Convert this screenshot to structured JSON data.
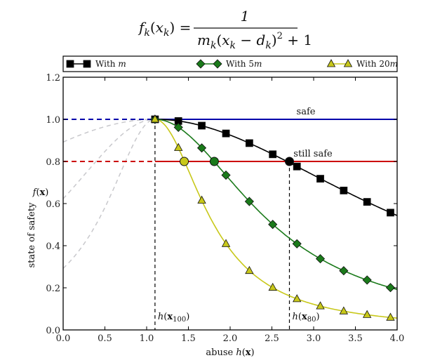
{
  "formula": {
    "lhs": "f_k(x_k) =",
    "numerator": "1",
    "denominator": "m_k(x_k − d_k)² + 1"
  },
  "chart_data": {
    "type": "line",
    "title": "",
    "xlabel": "abuse h(x)",
    "ylabel": "state of safety",
    "ylabel_symbol": "f(x)",
    "xlim": [
      0.0,
      4.0
    ],
    "ylim": [
      0.0,
      1.2
    ],
    "xticks": [
      "0.0",
      "0.5",
      "1.0",
      "1.5",
      "2.0",
      "2.5",
      "3.0",
      "3.5",
      "4.0"
    ],
    "yticks": [
      "0.0",
      "0.2",
      "0.4",
      "0.6",
      "0.8",
      "1.0",
      "1.2"
    ],
    "grid": false,
    "legend_position": "top, outside above plot",
    "function": "f(x) = 1 / (m (x - d)^2 + 1)",
    "d": 1.1,
    "series": [
      {
        "name": "With m",
        "legend_label": "With ",
        "legend_var": "m",
        "m": 0.1,
        "color": "#000000",
        "marker": "square",
        "x": [
          1.1,
          1.38,
          1.66,
          1.95,
          2.23,
          2.51,
          2.8,
          3.08,
          3.36,
          3.64,
          3.92
        ],
        "values": [
          1.0,
          0.992,
          0.97,
          0.933,
          0.887,
          0.834,
          0.776,
          0.718,
          0.662,
          0.608,
          0.557
        ]
      },
      {
        "name": "With 5m",
        "legend_label": "With 5",
        "legend_var": "m",
        "m": 0.5,
        "color": "#1a7a1a",
        "marker": "diamond",
        "x": [
          1.1,
          1.38,
          1.66,
          1.95,
          2.23,
          2.51,
          2.8,
          3.08,
          3.36,
          3.64,
          3.92
        ],
        "values": [
          1.0,
          0.962,
          0.864,
          0.735,
          0.61,
          0.501,
          0.409,
          0.338,
          0.281,
          0.237,
          0.201
        ]
      },
      {
        "name": "With 20m",
        "legend_label": "With 20",
        "legend_var": "m",
        "m": 2.0,
        "color": "#c8c81a",
        "marker": "triangle",
        "x": [
          1.1,
          1.38,
          1.66,
          1.95,
          2.23,
          2.51,
          2.8,
          3.08,
          3.36,
          3.64,
          3.92
        ],
        "values": [
          1.0,
          0.865,
          0.615,
          0.409,
          0.281,
          0.201,
          0.147,
          0.113,
          0.089,
          0.072,
          0.059
        ]
      }
    ],
    "thresholds": [
      {
        "label": "safe",
        "value": 1.0,
        "color": "#0000aa"
      },
      {
        "label": "still safe",
        "value": 0.8,
        "color": "#cc0000"
      }
    ],
    "vlines": [
      {
        "label_prefix": "h(",
        "label_bold": "x",
        "label_sub": "100",
        "label_suffix": ")",
        "x": 1.1
      },
      {
        "label_prefix": "h(",
        "label_bold": "x",
        "label_sub": "80",
        "label_suffix": ")",
        "x": 2.71
      }
    ],
    "intersections": [
      {
        "series": "With m",
        "x": 2.71,
        "y": 0.8,
        "color": "#000000"
      },
      {
        "series": "With 5m",
        "x": 1.81,
        "y": 0.8,
        "color": "#1a7a1a"
      },
      {
        "series": "With 20m",
        "x": 1.45,
        "y": 0.8,
        "color": "#c8c81a"
      }
    ],
    "mirror_curves_color": "#c8c8cc"
  }
}
